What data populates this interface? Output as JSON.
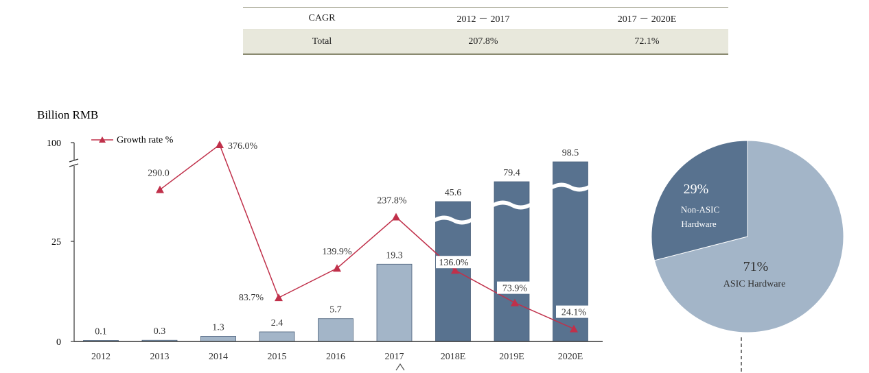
{
  "cagr_table": {
    "headers": [
      "CAGR",
      "2012 － 2017",
      "2017 － 2020E"
    ],
    "rows": [
      [
        "Total",
        "207.8%",
        "72.1%"
      ]
    ]
  },
  "chart_data": [
    {
      "type": "bar",
      "ylabel": "Billion  RMB",
      "yticks": [
        "0",
        "25",
        "100"
      ],
      "categories": [
        "2012",
        "2013",
        "2014",
        "2015",
        "2016",
        "2017",
        "2018E",
        "2019E",
        "2020E"
      ],
      "values": [
        0.1,
        0.3,
        1.3,
        2.4,
        5.7,
        19.3,
        45.6,
        79.4,
        98.5
      ],
      "value_labels": [
        "0.1",
        "0.3",
        "1.3",
        "2.4",
        "5.7",
        "19.3",
        "45.6",
        "79.4",
        "98.5"
      ],
      "axis_break": true,
      "colors": {
        "actual": "#a3b5c8",
        "forecast": "#58728f",
        "line": "#c0304a"
      },
      "line_series": {
        "name": "Growth rate %",
        "values": [
          null,
          290.0,
          376.0,
          83.7,
          139.9,
          237.8,
          136.0,
          73.9,
          24.1
        ],
        "labels": [
          "",
          "290.0",
          "376.0%",
          "83.7%",
          "139.9%",
          "237.8%",
          "136.0%",
          "73.9%",
          "24.1%"
        ]
      },
      "legend": "top-left"
    },
    {
      "type": "pie",
      "slices": [
        {
          "name": "Non-ASIC Hardware",
          "label_lines": [
            "Non-ASIC",
            "Hardware"
          ],
          "pct_label": "29%",
          "value": 29,
          "color": "#58728f"
        },
        {
          "name": "ASIC Hardware",
          "label_lines": [
            "ASIC Hardware"
          ],
          "pct_label": "71%",
          "value": 71,
          "color": "#a3b5c8"
        }
      ]
    }
  ]
}
